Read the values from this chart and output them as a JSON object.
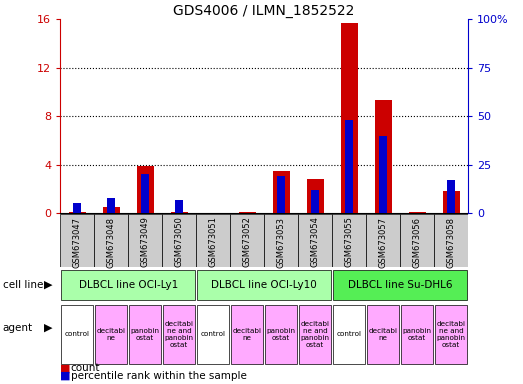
{
  "title": "GDS4006 / ILMN_1852522",
  "samples": [
    "GSM673047",
    "GSM673048",
    "GSM673049",
    "GSM673050",
    "GSM673051",
    "GSM673052",
    "GSM673053",
    "GSM673054",
    "GSM673055",
    "GSM673057",
    "GSM673056",
    "GSM673058"
  ],
  "counts": [
    0.1,
    0.5,
    3.9,
    0.1,
    0.0,
    0.1,
    3.5,
    2.8,
    15.7,
    9.3,
    0.1,
    1.8
  ],
  "percentiles": [
    5,
    8,
    20,
    7,
    0,
    0,
    19,
    12,
    48,
    40,
    0,
    17
  ],
  "cell_lines": [
    {
      "label": "DLBCL line OCI-Ly1",
      "start": 0,
      "end": 4,
      "color": "#aaffaa"
    },
    {
      "label": "DLBCL line OCI-Ly10",
      "start": 4,
      "end": 8,
      "color": "#aaffaa"
    },
    {
      "label": "DLBCL line Su-DHL6",
      "start": 8,
      "end": 12,
      "color": "#55ee55"
    }
  ],
  "agents": [
    "control",
    "decitabi\nne",
    "panobin\nostat",
    "decitabi\nne and\npanobin\nostat",
    "control",
    "decitabi\nne",
    "panobin\nostat",
    "decitabi\nne and\npanobin\nostat",
    "control",
    "decitabi\nne",
    "panobin\nostat",
    "decitabi\nne and\npanobin\nostat"
  ],
  "agent_bg": [
    "#ffffff",
    "#ffaaff",
    "#ffaaff",
    "#ffaaff",
    "#ffffff",
    "#ffaaff",
    "#ffaaff",
    "#ffaaff",
    "#ffffff",
    "#ffaaff",
    "#ffaaff",
    "#ffaaff"
  ],
  "bar_color_red": "#cc0000",
  "bar_color_blue": "#0000cc",
  "ylim_left": [
    0,
    16
  ],
  "ylim_right": [
    0,
    100
  ],
  "yticks_left": [
    0,
    4,
    8,
    12,
    16
  ],
  "ytick_labels_left": [
    "0",
    "4",
    "8",
    "12",
    "16"
  ],
  "yticks_right": [
    0,
    25,
    50,
    75,
    100
  ],
  "ytick_labels_right": [
    "0",
    "25",
    "50",
    "75",
    "100%"
  ],
  "bg_color": "#ffffff",
  "tick_bg": "#cccccc",
  "bar_width": 0.5,
  "blue_bar_width": 0.25
}
